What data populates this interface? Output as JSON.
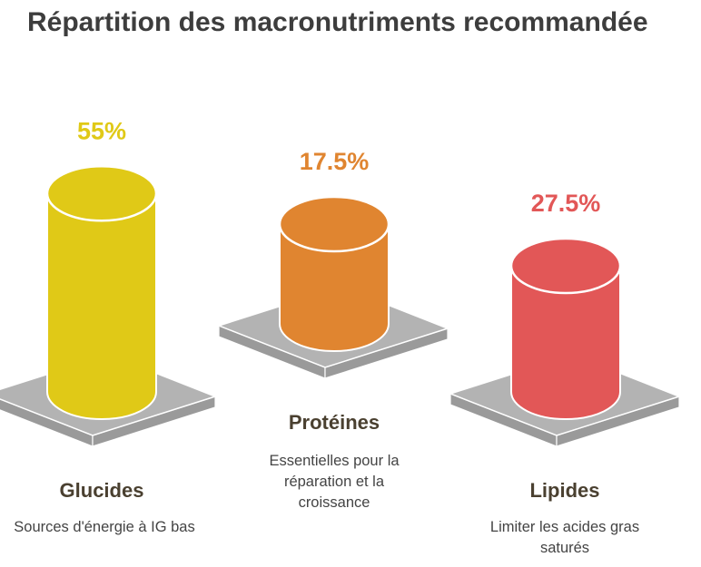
{
  "title": "Répartition des macronutriments recommandée",
  "chart_data": {
    "type": "bar",
    "title": "Répartition des macronutriments recommandée",
    "unit": "%",
    "categories": [
      "Glucides",
      "Protéines",
      "Lipides"
    ],
    "values": [
      55,
      17.5,
      27.5
    ],
    "value_labels": [
      "55%",
      "17.5%",
      "27.5%"
    ],
    "descriptions": [
      "Sources d'énergie à IG bas",
      "Essentielles pour la réparation et la croissance",
      "Limiter les acides gras saturés"
    ],
    "colors": [
      "#e0c917",
      "#e08530",
      "#e25757"
    ],
    "label_colors": [
      "#e0c917",
      "#e08530",
      "#e25757"
    ]
  },
  "colors": {
    "title": "#3d3d3d",
    "platform_top": "#b3b3b3",
    "platform_side": "#9a9a9a",
    "category_label": "#4a4030",
    "description": "#444444"
  }
}
